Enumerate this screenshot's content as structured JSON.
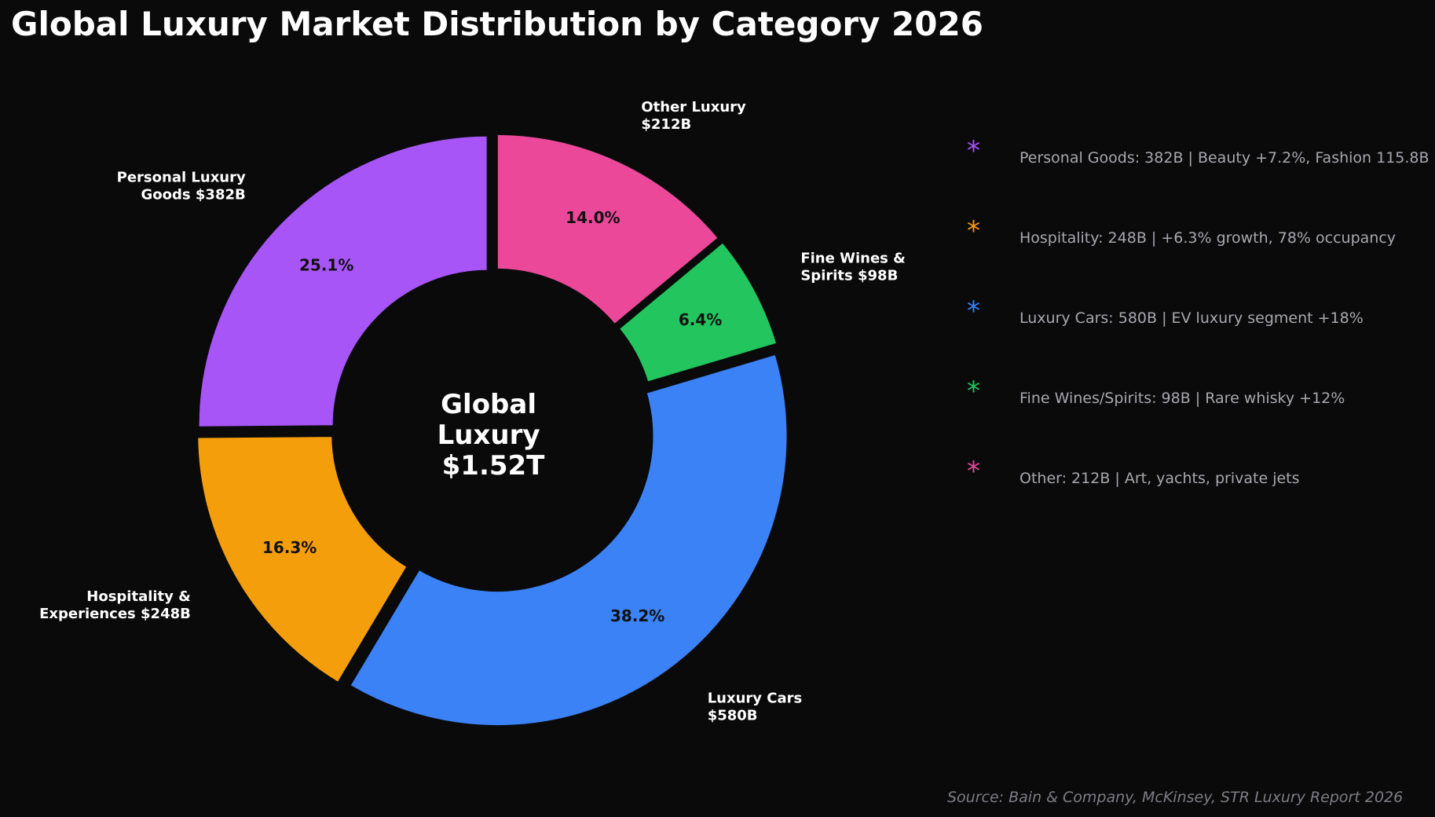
{
  "title": "Global Luxury Market Distribution by Category 2026",
  "center_label": [
    "Global",
    "Luxury",
    "$1.52T"
  ],
  "chart_data": {
    "type": "pie",
    "subtype": "donut",
    "title": "Global Luxury Market Distribution by Category 2026",
    "total_label": "$1.52T",
    "unit": "$B",
    "slices": [
      {
        "name": "Personal Luxury Goods",
        "label_lines": [
          "Personal Luxury",
          "Goods $382B"
        ],
        "value": 382,
        "percent": 25.1,
        "percent_label": "25.1%",
        "color": "#a855f7"
      },
      {
        "name": "Hospitality & Experiences",
        "label_lines": [
          "Hospitality &",
          "Experiences $248B"
        ],
        "value": 248,
        "percent": 16.3,
        "percent_label": "16.3%",
        "color": "#f59e0b"
      },
      {
        "name": "Luxury Cars",
        "label_lines": [
          "Luxury Cars",
          "$580B"
        ],
        "value": 580,
        "percent": 38.2,
        "percent_label": "38.2%",
        "color": "#3b82f6"
      },
      {
        "name": "Fine Wines & Spirits",
        "label_lines": [
          "Fine Wines &",
          "Spirits $98B"
        ],
        "value": 98,
        "percent": 6.4,
        "percent_label": "6.4%",
        "color": "#22c55e"
      },
      {
        "name": "Other Luxury",
        "label_lines": [
          "Other Luxury",
          "$212B"
        ],
        "value": 212,
        "percent": 14.0,
        "percent_label": "14.0%",
        "color": "#ec4899"
      }
    ]
  },
  "legend": {
    "marker": "*",
    "items": [
      {
        "text": "Personal Goods: 382B | Beauty +7.2%, Fashion 115.8B",
        "color": "#a855f7"
      },
      {
        "text": "Hospitality: 248B | +6.3% growth, 78% occupancy",
        "color": "#f59e0b"
      },
      {
        "text": "Luxury Cars: 580B | EV luxury segment +18%",
        "color": "#3b82f6"
      },
      {
        "text": "Fine Wines/Spirits: 98B | Rare whisky +12%",
        "color": "#22c55e"
      },
      {
        "text": "Other: 212B | Art, yachts, private jets",
        "color": "#ec4899"
      }
    ]
  },
  "source": "Source: Bain & Company, McKinsey, STR Luxury Report 2026"
}
